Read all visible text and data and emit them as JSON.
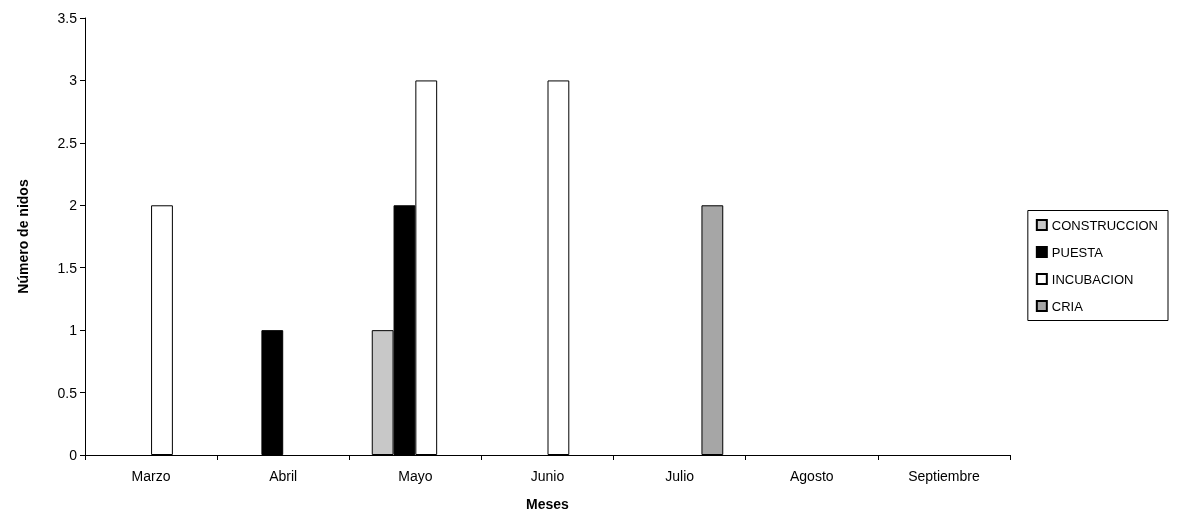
{
  "chart_data": {
    "type": "bar",
    "xlabel": "Meses",
    "ylabel": "Número de nidos",
    "categories": [
      "Marzo",
      "Abril",
      "Mayo",
      "Junio",
      "Julio",
      "Agosto",
      "Septiembre"
    ],
    "series": [
      {
        "name": "CONSTRUCCION",
        "color": "#c8c8c8",
        "values": [
          null,
          null,
          1,
          null,
          null,
          null,
          null
        ]
      },
      {
        "name": "PUESTA",
        "color": "#000000",
        "values": [
          null,
          1,
          2,
          null,
          null,
          null,
          null
        ]
      },
      {
        "name": "INCUBACION",
        "color": "#ffffff",
        "values": [
          2,
          null,
          3,
          3,
          null,
          null,
          null
        ]
      },
      {
        "name": "CRIA",
        "color": "#a6a6a6",
        "values": [
          null,
          null,
          null,
          null,
          2,
          null,
          null
        ]
      }
    ],
    "ylim": [
      0,
      3.5
    ],
    "yticks": [
      0,
      0.5,
      1,
      1.5,
      2,
      2.5,
      3,
      3.5
    ],
    "grid": false,
    "legend": "right"
  }
}
